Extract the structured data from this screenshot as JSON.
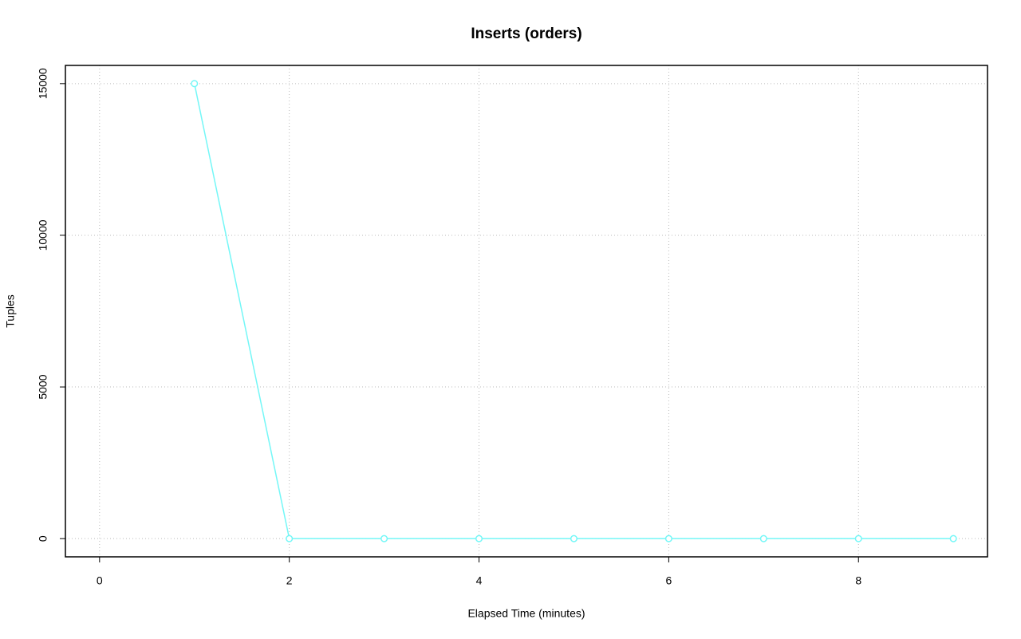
{
  "chart_data": {
    "type": "line",
    "title": "Inserts (orders)",
    "x_label": "Elapsed Time (minutes)",
    "y_label": "Tuples",
    "x": [
      1,
      2,
      3,
      4,
      5,
      6,
      7,
      8,
      9
    ],
    "values": [
      15000,
      0,
      0,
      0,
      0,
      0,
      0,
      0,
      0
    ],
    "color": "#74f7f7",
    "markers": true,
    "xlim": [
      -0.36,
      9.36
    ],
    "xticks": [
      0,
      2,
      4,
      6,
      8
    ],
    "ylim": [
      -600,
      15600
    ],
    "yticks": [
      0,
      5000,
      10000,
      15000
    ],
    "grid": true
  }
}
